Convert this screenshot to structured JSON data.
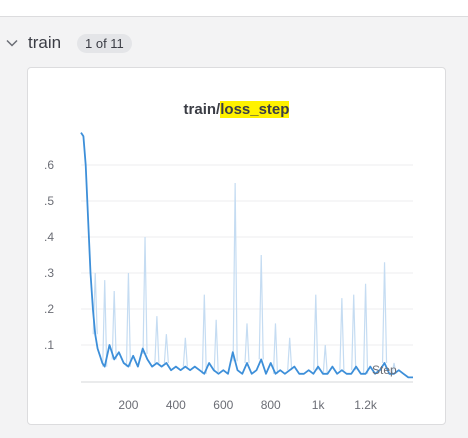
{
  "section": {
    "title": "train",
    "count": "1 of 11"
  },
  "panel": {
    "title_prefix": "train/",
    "title_highlight": "loss_step",
    "xlabel": "Step"
  },
  "colors": {
    "line": "#3d8fd9",
    "raw": "#c5dcf2",
    "highlight": "#fff200",
    "grid": "#eeeeef"
  },
  "chart_data": {
    "type": "line",
    "xlabel": "Step",
    "ylabel": "",
    "xlim": [
      0,
      1400
    ],
    "ylim": [
      0,
      0.7
    ],
    "x_ticks": [
      200,
      400,
      600,
      800,
      1000,
      1200
    ],
    "x_tick_labels": [
      "200",
      "400",
      "600",
      "800",
      "1k",
      "1.2k"
    ],
    "y_ticks": [
      0.1,
      0.2,
      0.3,
      0.4,
      0.5,
      0.6
    ],
    "y_tick_labels": [
      ".1",
      ".2",
      ".3",
      ".4",
      ".5",
      ".6"
    ],
    "grid": true,
    "series": [
      {
        "x": [
          0,
          10,
          20,
          30,
          40,
          50,
          60,
          70,
          80,
          90,
          100,
          120,
          140,
          160,
          180,
          200,
          220,
          240,
          260,
          280,
          300,
          320,
          340,
          360,
          380,
          400,
          420,
          440,
          460,
          480,
          500,
          520,
          540,
          560,
          580,
          600,
          620,
          640,
          660,
          680,
          700,
          720,
          740,
          760,
          780,
          800,
          820,
          840,
          860,
          880,
          900,
          920,
          940,
          960,
          980,
          1000,
          1020,
          1040,
          1060,
          1080,
          1100,
          1120,
          1140,
          1160,
          1180,
          1200,
          1220,
          1240,
          1260,
          1280,
          1300,
          1320,
          1340,
          1360,
          1380,
          1400
        ],
        "values": [
          0.69,
          0.68,
          0.6,
          0.45,
          0.3,
          0.2,
          0.13,
          0.09,
          0.07,
          0.05,
          0.04,
          0.1,
          0.06,
          0.08,
          0.05,
          0.04,
          0.07,
          0.04,
          0.09,
          0.06,
          0.04,
          0.05,
          0.04,
          0.05,
          0.03,
          0.04,
          0.03,
          0.04,
          0.03,
          0.04,
          0.03,
          0.02,
          0.05,
          0.03,
          0.02,
          0.03,
          0.02,
          0.08,
          0.03,
          0.02,
          0.05,
          0.02,
          0.03,
          0.06,
          0.02,
          0.05,
          0.02,
          0.03,
          0.02,
          0.03,
          0.04,
          0.02,
          0.02,
          0.03,
          0.02,
          0.04,
          0.02,
          0.02,
          0.04,
          0.02,
          0.03,
          0.02,
          0.02,
          0.04,
          0.02,
          0.02,
          0.04,
          0.02,
          0.03,
          0.05,
          0.02,
          0.02,
          0.03,
          0.02,
          0.01,
          0.01
        ]
      }
    ],
    "raw_spikes": [
      {
        "x": 60,
        "y": 0.3
      },
      {
        "x": 100,
        "y": 0.28
      },
      {
        "x": 140,
        "y": 0.25
      },
      {
        "x": 200,
        "y": 0.3
      },
      {
        "x": 270,
        "y": 0.4
      },
      {
        "x": 320,
        "y": 0.18
      },
      {
        "x": 360,
        "y": 0.13
      },
      {
        "x": 440,
        "y": 0.12
      },
      {
        "x": 520,
        "y": 0.24
      },
      {
        "x": 570,
        "y": 0.17
      },
      {
        "x": 650,
        "y": 0.55
      },
      {
        "x": 700,
        "y": 0.16
      },
      {
        "x": 760,
        "y": 0.35
      },
      {
        "x": 820,
        "y": 0.16
      },
      {
        "x": 880,
        "y": 0.12
      },
      {
        "x": 990,
        "y": 0.24
      },
      {
        "x": 1030,
        "y": 0.1
      },
      {
        "x": 1100,
        "y": 0.23
      },
      {
        "x": 1150,
        "y": 0.24
      },
      {
        "x": 1200,
        "y": 0.27
      },
      {
        "x": 1280,
        "y": 0.33
      },
      {
        "x": 1320,
        "y": 0.05
      }
    ]
  }
}
